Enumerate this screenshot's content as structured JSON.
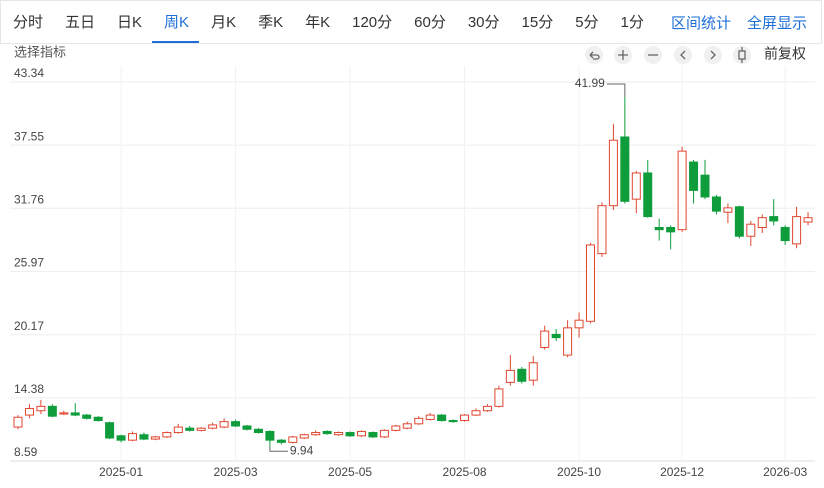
{
  "toolbar": {
    "tabs": [
      "分时",
      "五日",
      "日K",
      "周K",
      "月K",
      "季K",
      "年K",
      "120分",
      "60分",
      "30分",
      "15分",
      "5分",
      "1分"
    ],
    "selected": 3,
    "actions": [
      "区间统计",
      "全屏显示"
    ]
  },
  "indicator_label": "选择指标",
  "adjust_label": "前复权",
  "chart_data": {
    "type": "candlestick",
    "categories": [
      null,
      null,
      null,
      null,
      null,
      null,
      null,
      null,
      null,
      "2025-01",
      null,
      null,
      null,
      null,
      null,
      null,
      null,
      null,
      null,
      "2025-03",
      null,
      null,
      null,
      null,
      null,
      null,
      null,
      null,
      null,
      "2025-05",
      null,
      null,
      null,
      null,
      null,
      null,
      null,
      null,
      null,
      "2025-08",
      null,
      null,
      null,
      null,
      null,
      null,
      null,
      null,
      null,
      "2025-10",
      null,
      null,
      null,
      null,
      null,
      null,
      null,
      null,
      "2025-12",
      null,
      null,
      null,
      null,
      null,
      null,
      null,
      null,
      "2026-03",
      null,
      null
    ],
    "open": [
      11.7,
      12.8,
      13.2,
      13.6,
      12.9,
      13.0,
      12.8,
      12.6,
      12.1,
      10.9,
      10.5,
      11.0,
      10.6,
      10.8,
      11.2,
      11.6,
      11.4,
      11.6,
      11.7,
      12.2,
      11.8,
      11.5,
      11.3,
      10.5,
      10.3,
      10.7,
      11.0,
      11.3,
      11.0,
      11.2,
      10.9,
      11.2,
      10.8,
      11.4,
      11.6,
      12.0,
      12.4,
      12.8,
      12.3,
      12.3,
      12.8,
      13.2,
      13.6,
      15.8,
      17.0,
      16.0,
      19.0,
      20.2,
      18.3,
      20.8,
      21.4,
      27.6,
      32.0,
      38.3,
      32.6,
      35.0,
      30.0,
      30.0,
      29.8,
      36.0,
      34.8,
      32.8,
      31.4,
      31.9,
      29.2,
      30.0,
      31.0,
      30.0,
      28.5,
      30.5
    ],
    "close": [
      12.6,
      13.4,
      13.6,
      12.7,
      13.0,
      12.8,
      12.5,
      12.3,
      10.7,
      10.5,
      11.1,
      10.6,
      10.8,
      11.2,
      11.7,
      11.4,
      11.6,
      11.9,
      12.2,
      11.8,
      11.5,
      11.2,
      10.5,
      10.3,
      10.8,
      11.0,
      11.2,
      11.1,
      11.2,
      10.9,
      11.3,
      10.8,
      11.4,
      11.8,
      12.0,
      12.5,
      12.8,
      12.3,
      12.2,
      12.8,
      13.2,
      13.6,
      15.2,
      16.9,
      15.9,
      17.6,
      20.5,
      19.9,
      20.8,
      21.5,
      28.4,
      32.0,
      38.0,
      32.4,
      35.0,
      31.0,
      29.8,
      29.6,
      37.0,
      33.4,
      32.8,
      31.5,
      31.8,
      29.2,
      30.3,
      30.9,
      30.6,
      28.8,
      31.0,
      30.9
    ],
    "high": [
      12.8,
      13.8,
      14.2,
      13.8,
      13.2,
      13.9,
      12.9,
      12.7,
      12.2,
      11.0,
      11.3,
      11.2,
      10.9,
      11.3,
      12.0,
      11.8,
      11.7,
      12.1,
      12.5,
      12.4,
      11.9,
      11.6,
      11.4,
      10.6,
      10.9,
      11.1,
      11.4,
      11.4,
      11.3,
      11.3,
      11.4,
      11.3,
      11.5,
      11.9,
      12.2,
      12.7,
      13.0,
      12.9,
      12.4,
      12.9,
      13.4,
      13.8,
      15.5,
      18.3,
      17.2,
      18.2,
      21.0,
      20.7,
      21.5,
      22.2,
      28.6,
      32.3,
      39.5,
      41.99,
      35.2,
      36.2,
      30.8,
      30.2,
      37.4,
      36.2,
      36.2,
      33.0,
      32.2,
      32.0,
      30.6,
      31.2,
      32.6,
      30.2,
      31.9,
      31.4
    ],
    "low": [
      11.5,
      12.5,
      12.9,
      12.6,
      12.8,
      12.7,
      12.4,
      12.2,
      10.6,
      10.3,
      10.4,
      10.5,
      10.5,
      10.7,
      11.1,
      11.3,
      11.3,
      11.5,
      11.6,
      11.7,
      11.4,
      11.1,
      9.94,
      10.1,
      10.2,
      10.6,
      10.9,
      11.0,
      10.9,
      10.8,
      10.8,
      10.7,
      10.7,
      11.3,
      11.5,
      11.9,
      12.3,
      12.2,
      12.1,
      12.2,
      12.7,
      13.1,
      13.5,
      15.5,
      15.7,
      15.5,
      18.8,
      19.6,
      18.1,
      19.9,
      21.2,
      27.3,
      31.6,
      32.2,
      31.3,
      30.9,
      28.8,
      28.0,
      29.6,
      32.2,
      32.6,
      31.2,
      30.4,
      29.0,
      28.3,
      29.5,
      30.2,
      28.4,
      28.1,
      30.2
    ],
    "up_color": "#e0462f",
    "down_color": "#0f9d3c",
    "ylim": [
      8.59,
      43.34
    ],
    "yticks": [
      8.59,
      14.38,
      20.17,
      25.97,
      31.76,
      37.55,
      43.34
    ],
    "grid": true,
    "max_index": 53,
    "min_index": 22
  }
}
